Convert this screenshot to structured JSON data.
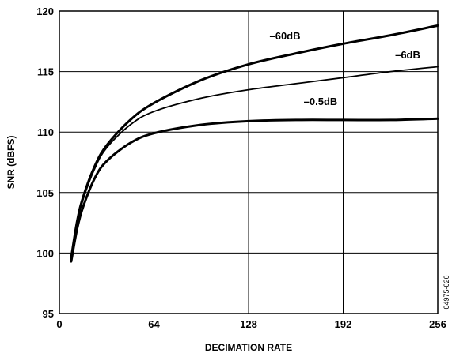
{
  "chart_data": {
    "type": "line",
    "xlabel": "DECIMATION RATE",
    "ylabel": "SNR (dBFS)",
    "xlim": [
      0,
      256
    ],
    "ylim": [
      95,
      120
    ],
    "x_ticks": [
      0,
      64,
      128,
      192,
      256
    ],
    "y_ticks": [
      95,
      100,
      105,
      110,
      115,
      120
    ],
    "grid": true,
    "figure_id": "04975-026",
    "series": [
      {
        "name": "–60dB",
        "x": [
          8,
          12,
          16,
          24,
          32,
          48,
          64,
          96,
          128,
          160,
          192,
          224,
          256
        ],
        "y": [
          99.6,
          102.6,
          104.6,
          107.2,
          108.9,
          111.0,
          112.4,
          114.3,
          115.6,
          116.5,
          117.3,
          118.0,
          118.8
        ]
      },
      {
        "name": "–6dB",
        "x": [
          8,
          12,
          16,
          24,
          32,
          48,
          64,
          96,
          128,
          160,
          192,
          224,
          256
        ],
        "y": [
          99.6,
          102.4,
          104.4,
          107.0,
          108.7,
          110.6,
          111.7,
          112.8,
          113.5,
          114.0,
          114.5,
          115.0,
          115.4
        ]
      },
      {
        "name": "–0.5dB",
        "x": [
          8,
          12,
          16,
          24,
          32,
          48,
          64,
          96,
          128,
          160,
          192,
          224,
          256
        ],
        "y": [
          99.3,
          102.0,
          103.8,
          106.2,
          107.6,
          109.1,
          109.9,
          110.6,
          110.9,
          111.0,
          111.0,
          111.0,
          111.1
        ]
      }
    ]
  }
}
